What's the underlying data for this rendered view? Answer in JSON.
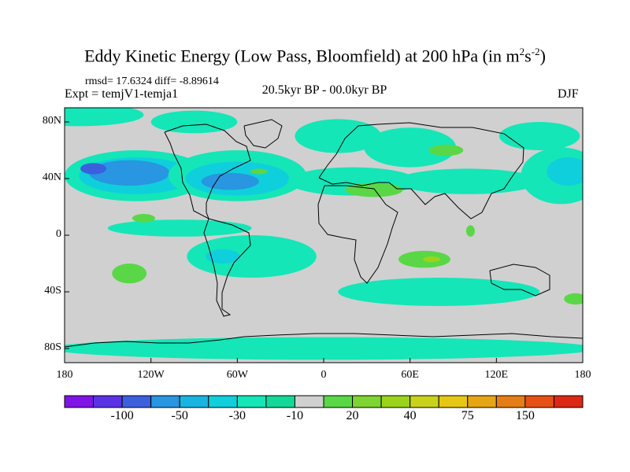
{
  "title": {
    "text": "Eddy Kinetic Energy (Low Pass, Bloomfield) at 200 hPa (in m",
    "sup1": "2",
    "mid": "s",
    "sup2": "-2",
    "end": ")"
  },
  "stats_line": "rmsd= 17.6324 diff= -8.89614",
  "expt_line": "Expt = temjV1-temja1",
  "period": "20.5kyr BP - 00.0kyr BP",
  "season": "DJF",
  "map": {
    "lon_range": [
      -180,
      180
    ],
    "lat_range": [
      -90,
      90
    ],
    "y_axis_labels": [
      {
        "lat": 80,
        "text": "80N"
      },
      {
        "lat": 40,
        "text": "40N"
      },
      {
        "lat": 0,
        "text": "0"
      },
      {
        "lat": -40,
        "text": "40S"
      },
      {
        "lat": -80,
        "text": "80S"
      }
    ],
    "x_axis_labels": [
      {
        "lon": -180,
        "text": "180"
      },
      {
        "lon": -120,
        "text": "120W"
      },
      {
        "lon": -60,
        "text": "60W"
      },
      {
        "lon": 0,
        "text": "0"
      },
      {
        "lon": 60,
        "text": "60E"
      },
      {
        "lon": 120,
        "text": "120E"
      },
      {
        "lon": 180,
        "text": "180"
      }
    ],
    "background_color": "#d0d0d0",
    "fields": [
      {
        "level": "-10",
        "color": "#14e6b8",
        "lon": -170,
        "lat": 85,
        "rx": 45,
        "ry": 8
      },
      {
        "level": "-10",
        "color": "#14e6b8",
        "lon": -90,
        "lat": 80,
        "rx": 30,
        "ry": 8
      },
      {
        "level": "-10",
        "color": "#14e6b8",
        "lon": -130,
        "lat": 42,
        "rx": 50,
        "ry": 18
      },
      {
        "level": "-30",
        "color": "#0fcfdc",
        "lon": -130,
        "lat": 42,
        "rx": 40,
        "ry": 13
      },
      {
        "level": "-50",
        "color": "#2896e0",
        "lon": -135,
        "lat": 44,
        "rx": 28,
        "ry": 9
      },
      {
        "level": "-100",
        "color": "#3a60de",
        "lon": -160,
        "lat": 47,
        "rx": 9,
        "ry": 4
      },
      {
        "level": "-10",
        "color": "#14e6b8",
        "lon": -60,
        "lat": 42,
        "rx": 48,
        "ry": 18
      },
      {
        "level": "-30",
        "color": "#0fcfdc",
        "lon": -60,
        "lat": 40,
        "rx": 36,
        "ry": 12
      },
      {
        "level": "-50",
        "color": "#2896e0",
        "lon": -65,
        "lat": 38,
        "rx": 20,
        "ry": 6
      },
      {
        "level": "-10",
        "color": "#14e6b8",
        "lon": 10,
        "lat": 70,
        "rx": 30,
        "ry": 12
      },
      {
        "level": "-10",
        "color": "#14e6b8",
        "lon": 60,
        "lat": 62,
        "rx": 32,
        "ry": 14
      },
      {
        "level": "-10",
        "color": "#14e6b8",
        "lon": 20,
        "lat": 38,
        "rx": 45,
        "ry": 10
      },
      {
        "level": "-10",
        "color": "#14e6b8",
        "lon": 100,
        "lat": 38,
        "rx": 50,
        "ry": 9
      },
      {
        "level": "-10",
        "color": "#14e6b8",
        "lon": 150,
        "lat": 70,
        "rx": 28,
        "ry": 10
      },
      {
        "level": "-10",
        "color": "#14e6b8",
        "lon": 165,
        "lat": 42,
        "rx": 28,
        "ry": 20
      },
      {
        "level": "-30",
        "color": "#0fcfdc",
        "lon": 170,
        "lat": 45,
        "rx": 15,
        "ry": 10
      },
      {
        "level": "-10",
        "color": "#14e6b8",
        "lon": -100,
        "lat": 5,
        "rx": 50,
        "ry": 6
      },
      {
        "level": "-10",
        "color": "#14e6b8",
        "lon": -50,
        "lat": -15,
        "rx": 45,
        "ry": 15
      },
      {
        "level": "-30",
        "color": "#0fcfdc",
        "lon": -70,
        "lat": -15,
        "rx": 12,
        "ry": 5
      },
      {
        "level": "-10",
        "color": "#14e6b8",
        "lon": 80,
        "lat": -40,
        "rx": 70,
        "ry": 10
      },
      {
        "level": "-10",
        "color": "#14e6b8",
        "lon": 0,
        "lat": -80,
        "rx": 190,
        "ry": 8
      },
      {
        "level": "20",
        "color": "#5ad746",
        "lon": 35,
        "lat": 32,
        "rx": 20,
        "ry": 5
      },
      {
        "level": "20",
        "color": "#5ad746",
        "lon": 85,
        "lat": 60,
        "rx": 12,
        "ry": 4
      },
      {
        "level": "20",
        "color": "#5ad746",
        "lon": -45,
        "lat": 45,
        "rx": 6,
        "ry": 2
      },
      {
        "level": "20",
        "color": "#5ad746",
        "lon": -125,
        "lat": 12,
        "rx": 8,
        "ry": 3
      },
      {
        "level": "20",
        "color": "#5ad746",
        "lon": -135,
        "lat": -27,
        "rx": 12,
        "ry": 7
      },
      {
        "level": "20",
        "color": "#5ad746",
        "lon": 70,
        "lat": -17,
        "rx": 18,
        "ry": 6
      },
      {
        "level": "40",
        "color": "#9bd31a",
        "lon": 75,
        "lat": -17,
        "rx": 6,
        "ry": 2
      },
      {
        "level": "20",
        "color": "#5ad746",
        "lon": 102,
        "lat": 3,
        "rx": 3,
        "ry": 4
      },
      {
        "level": "20",
        "color": "#5ad746",
        "lon": 175,
        "lat": -45,
        "rx": 8,
        "ry": 4
      }
    ]
  },
  "colorbar": {
    "colors": [
      "#8014e6",
      "#5a32e6",
      "#3a60de",
      "#2896e0",
      "#1ab4e0",
      "#0fcfdc",
      "#14e6b8",
      "#14d898",
      "#d0d0d0",
      "#5ad746",
      "#7ed430",
      "#9bd31a",
      "#c8d21a",
      "#e6c814",
      "#e6a514",
      "#e67d14",
      "#e65014",
      "#dc2814"
    ],
    "labels": [
      {
        "boundary": 2,
        "text": "-100"
      },
      {
        "boundary": 4,
        "text": "-50"
      },
      {
        "boundary": 6,
        "text": "-30"
      },
      {
        "boundary": 8,
        "text": "-10"
      },
      {
        "boundary": 10,
        "text": "20"
      },
      {
        "boundary": 12,
        "text": "40"
      },
      {
        "boundary": 14,
        "text": "75"
      },
      {
        "boundary": 16,
        "text": "150"
      }
    ]
  }
}
